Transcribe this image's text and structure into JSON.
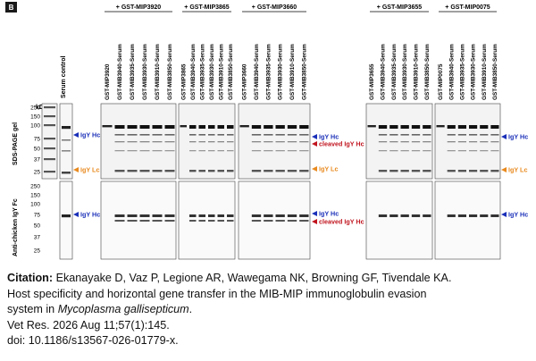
{
  "panel_label": "B",
  "lane_control": "Serum control",
  "kda_label": "kDa",
  "markers": [
    "250",
    "150",
    "100",
    "75",
    "50",
    "37",
    "25",
    "250",
    "150",
    "100",
    "75",
    "50",
    "37",
    "25"
  ],
  "side_labels": {
    "top": "SDS-PAGE gel",
    "bottom": "Anti-chicken IgY Fc"
  },
  "groups": [
    {
      "title": "+ GST-MIP3920",
      "lanes": [
        "GST-MIP3920",
        "GST-MIB3940-Serum",
        "GST-MIB3935-Serum",
        "GST-MIB3930-Serum",
        "GST-MIB3910-Serum",
        "GST-MIB3850-Serum"
      ]
    },
    {
      "title": "+ GST-MIP3865",
      "lanes": [
        "GST-MIP3865",
        "GST-MIB3940-Serum",
        "GST-MIB3935-Serum",
        "GST-MIB3930-Serum",
        "GST-MIB3910-Serum",
        "GST-MIB3850-Serum"
      ]
    },
    {
      "title": "+ GST-MIP3660",
      "lanes": [
        "GST-MIP3660",
        "GST-MIB3940-Serum",
        "GST-MIB3935-Serum",
        "GST-MIB3930-Serum",
        "GST-MIB3910-Serum",
        "GST-MIB3850-Serum"
      ]
    },
    {
      "title": "+ GST-MIP3655",
      "lanes": [
        "GST-MIP3655",
        "GST-MIB3940-Serum",
        "GST-MIB3935-Serum",
        "GST-MIB3930-Serum",
        "GST-MIB3910-Serum",
        "GST-MIB3850-Serum"
      ]
    },
    {
      "title": "+ GST-MIP0075",
      "lanes": [
        "GST-MIP0075",
        "GST-MIB3940-Serum",
        "GST-MIB3935-Serum",
        "GST-MIB3930-Serum",
        "GST-MIB3910-Serum",
        "GST-MIB3850-Serum"
      ]
    }
  ],
  "annotations": {
    "igy_hc": "IgY Hc",
    "cleaved_igy_hc": "cleaved IgY Hc",
    "igy_lc": "IgY Lc",
    "colors": {
      "igy_hc": "#1a2fb8",
      "cleaved": "#c0141e",
      "igy_lc": "#e8891e"
    }
  },
  "caption": {
    "label": "Citation:",
    "authors": "Ekanayake D, Vaz P, Legione AR, Wawegama NK, Browning GF, Tivendale KA.",
    "title_part1": "Host specificity and horizontal gene transfer in the MIB-MIP immunoglobulin evasion",
    "title_part2_prefix": "system in ",
    "title_italic": "Mycoplasma gallisepticum",
    "title_part2_suffix": ".",
    "journal": "Vet Res. 2026 Aug 11;57(1):145.",
    "doi": "doi: 10.1186/s13567-026-01779-x."
  }
}
